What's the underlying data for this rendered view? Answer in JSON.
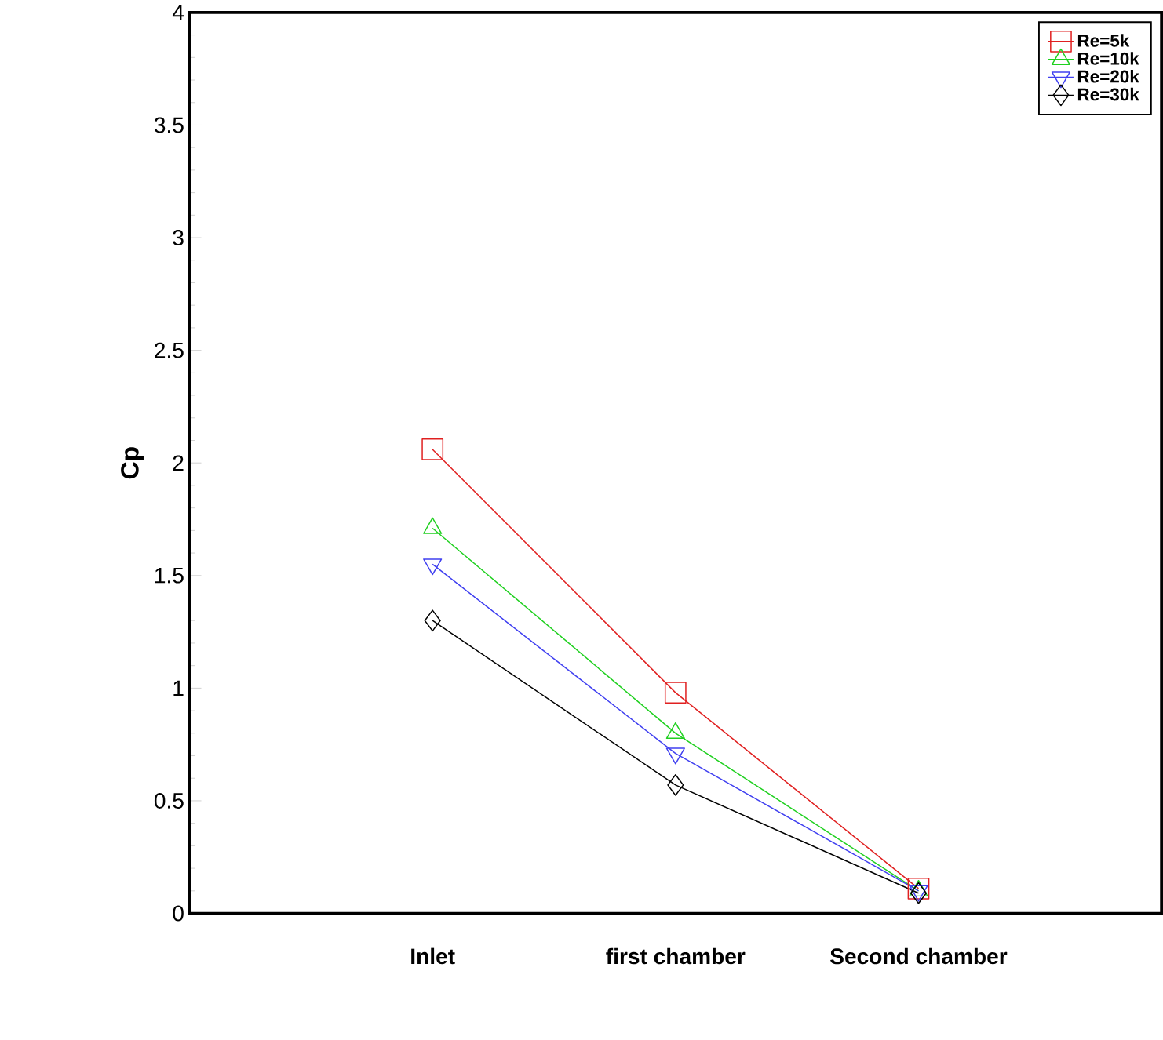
{
  "chart_data": {
    "type": "line",
    "ylabel": "Cp",
    "categories": [
      "Inlet",
      "first chamber",
      "Second chamber"
    ],
    "series": [
      {
        "name": "Re=5k",
        "color": "#e02020",
        "marker": "square",
        "values": [
          2.06,
          0.98,
          0.11
        ]
      },
      {
        "name": "Re=10k",
        "color": "#20d020",
        "marker": "triangle",
        "values": [
          1.71,
          0.8,
          0.1
        ]
      },
      {
        "name": "Re=20k",
        "color": "#4040f0",
        "marker": "triangle down",
        "values": [
          1.55,
          0.71,
          0.1
        ]
      },
      {
        "name": "Re=30k",
        "color": "#000000",
        "marker": "diamond",
        "values": [
          1.3,
          0.57,
          0.09
        ]
      }
    ],
    "ylim": [
      0,
      4
    ],
    "yticks": [
      0,
      0.5,
      1,
      1.5,
      2,
      2.5,
      3,
      3.5,
      4
    ],
    "grid": false,
    "legend": "top right",
    "line_style": "solid"
  }
}
